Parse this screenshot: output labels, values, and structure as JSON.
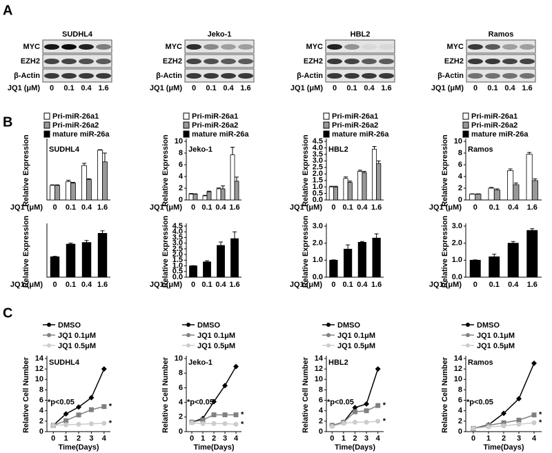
{
  "panel_labels": [
    "A",
    "B",
    "C"
  ],
  "blot_xlabel": "JQ1 (μM)",
  "blot_categories": [
    "0",
    "0.1",
    "0.4",
    "1.6"
  ],
  "blots": [
    {
      "title": "SUDHL4",
      "rows": [
        {
          "label": "MYC",
          "bands": [
            0.9,
            0.95,
            0.85,
            0.45
          ]
        },
        {
          "label": "EZH2",
          "bands": [
            0.7,
            0.7,
            0.65,
            0.6
          ]
        },
        {
          "label": "β-Actin",
          "bands": [
            0.75,
            0.75,
            0.75,
            0.75
          ]
        }
      ]
    },
    {
      "title": "Jeko-1",
      "rows": [
        {
          "label": "MYC",
          "bands": [
            0.8,
            0.4,
            0.3,
            0.3
          ]
        },
        {
          "label": "EZH2",
          "bands": [
            0.7,
            0.65,
            0.6,
            0.6
          ]
        },
        {
          "label": "β-Actin",
          "bands": [
            0.75,
            0.75,
            0.75,
            0.75
          ]
        }
      ]
    },
    {
      "title": "HBL2",
      "rows": [
        {
          "label": "MYC",
          "bands": [
            0.85,
            0.35,
            0.05,
            0.05
          ]
        },
        {
          "label": "EZH2",
          "bands": [
            0.75,
            0.7,
            0.6,
            0.6
          ]
        },
        {
          "label": "β-Actin",
          "bands": [
            0.75,
            0.75,
            0.75,
            0.75
          ]
        }
      ]
    },
    {
      "title": "Ramos",
      "rows": [
        {
          "label": "MYC",
          "bands": [
            0.75,
            0.6,
            0.3,
            0.3
          ]
        },
        {
          "label": "EZH2",
          "bands": [
            0.75,
            0.75,
            0.7,
            0.7
          ]
        },
        {
          "label": "β-Actin",
          "bands": [
            0.5,
            0.5,
            0.5,
            0.5
          ]
        }
      ]
    }
  ],
  "chart_data": [
    {
      "type": "bar",
      "title": "SUDHL4",
      "ylabel": "Relative Expression",
      "xlabel": "JQ1 (μM)",
      "categories": [
        "0",
        "0.1",
        "0.4",
        "1.6"
      ],
      "ylim": [
        0,
        4
      ],
      "series": [
        {
          "name": "Pri-miR-26a1",
          "color": "#ffffff",
          "values": [
            1.0,
            1.25,
            2.35,
            3.4
          ],
          "errors": [
            0.03,
            0.1,
            0.15,
            0.03
          ]
        },
        {
          "name": "Pri-miR-26a2",
          "color": "#999999",
          "values": [
            1.0,
            1.15,
            1.4,
            2.6
          ],
          "errors": [
            0.03,
            0.05,
            0.05,
            0.6
          ]
        }
      ]
    },
    {
      "type": "bar",
      "title": "Jeko-1",
      "ylabel": "Relative Expression",
      "xlabel": "JQ1 (μM)",
      "categories": [
        "0",
        "0.1",
        "0.4",
        "1.6"
      ],
      "ylim": [
        0,
        10
      ],
      "yticks": [
        0,
        2,
        4,
        6,
        8,
        10
      ],
      "series": [
        {
          "name": "Pri-miR-26a1",
          "color": "#ffffff",
          "values": [
            1.0,
            0.7,
            1.9,
            7.7
          ],
          "errors": [
            0.1,
            0.1,
            0.15,
            1.3
          ]
        },
        {
          "name": "Pri-miR-26a2",
          "color": "#999999",
          "values": [
            1.0,
            1.4,
            1.9,
            3.2
          ],
          "errors": [
            0.05,
            0.1,
            0.5,
            0.7
          ]
        }
      ]
    },
    {
      "type": "bar",
      "title": "HBL2",
      "ylabel": "Relative Expression",
      "xlabel": "JQ1 (μM)",
      "categories": [
        "0",
        "0.1",
        "0.4",
        "1.6"
      ],
      "ylim": [
        0,
        4.5
      ],
      "yticks": [
        {
          "value": 0,
          "label": "0.0"
        },
        0.5,
        {
          "value": 1,
          "label": "1.0"
        },
        1.5,
        {
          "value": 2,
          "label": "2.0"
        },
        2.5,
        {
          "value": 3,
          "label": "3.0"
        },
        3.5,
        {
          "value": 4,
          "label": "4.0"
        },
        4.5
      ],
      "series": [
        {
          "name": "Pri-miR-26a1",
          "color": "#ffffff",
          "values": [
            1.0,
            1.65,
            2.2,
            3.9
          ],
          "errors": [
            0.05,
            0.12,
            0.08,
            0.2
          ]
        },
        {
          "name": "Pri-miR-26a2",
          "color": "#999999",
          "values": [
            1.0,
            1.35,
            2.1,
            2.8
          ],
          "errors": [
            0.05,
            0.1,
            0.1,
            0.2
          ]
        }
      ]
    },
    {
      "type": "bar",
      "title": "Ramos",
      "ylabel": "Relative Expression",
      "xlabel": "JQ1 (μM)",
      "categories": [
        "0",
        "0.1",
        "0.4",
        "1.6"
      ],
      "ylim": [
        0,
        10
      ],
      "yticks": [
        0,
        2,
        4,
        6,
        8,
        10
      ],
      "series": [
        {
          "name": "Pri-miR-26a1",
          "color": "#ffffff",
          "values": [
            1.0,
            2.0,
            5.0,
            7.8
          ],
          "errors": [
            0.05,
            0.15,
            0.3,
            0.3
          ]
        },
        {
          "name": "Pri-miR-26a2",
          "color": "#999999",
          "values": [
            1.0,
            1.7,
            2.6,
            3.3
          ],
          "errors": [
            0.05,
            0.2,
            0.3,
            0.3
          ]
        }
      ]
    },
    {
      "type": "bar",
      "ylabel": "Relative Expression",
      "xlabel": "JQ1 (μM)",
      "categories": [
        "0",
        "0.1",
        "0.4",
        "1.6"
      ],
      "ylim": [
        0,
        2.5
      ],
      "series": [
        {
          "name": "mature miR-26a",
          "color": "#000000",
          "values": [
            1.0,
            1.62,
            1.7,
            2.15
          ],
          "errors": [
            0.02,
            0.05,
            0.1,
            0.12
          ]
        }
      ]
    },
    {
      "type": "bar",
      "ylabel": "Relative Expression",
      "xlabel": "JQ1 (μM)",
      "categories": [
        "0",
        "0.1",
        "0.4",
        "1.6"
      ],
      "ylim": [
        0,
        4.5
      ],
      "yticks": [
        {
          "value": 0,
          "label": "0.0"
        },
        0.5,
        {
          "value": 1,
          "label": "1.0"
        },
        1.5,
        {
          "value": 2,
          "label": "2.0"
        },
        2.5,
        {
          "value": 3,
          "label": "3.0"
        },
        3.5,
        {
          "value": 4,
          "label": "4.0"
        },
        4.5
      ],
      "series": [
        {
          "name": "mature miR-26a",
          "color": "#000000",
          "values": [
            1.0,
            1.35,
            2.8,
            3.4
          ],
          "errors": [
            0.02,
            0.1,
            0.3,
            0.6
          ]
        }
      ]
    },
    {
      "type": "bar",
      "ylabel": "Relative Expression",
      "xlabel": "JQ1 (μM)",
      "categories": [
        "0",
        "0.1",
        "0.4",
        "1.6"
      ],
      "ylim": [
        0,
        3
      ],
      "yticks": [
        {
          "value": 0,
          "label": "0.0"
        },
        {
          "value": 1,
          "label": "1.0"
        },
        {
          "value": 2,
          "label": "2.0"
        },
        {
          "value": 3,
          "label": "3.0"
        }
      ],
      "series": [
        {
          "name": "mature miR-26a",
          "color": "#000000",
          "values": [
            1.0,
            1.65,
            2.05,
            2.3
          ],
          "errors": [
            0.02,
            0.25,
            0.05,
            0.25
          ]
        }
      ]
    },
    {
      "type": "bar",
      "ylabel": "Relative Expression",
      "xlabel": "JQ1 (μM)",
      "categories": [
        "0",
        "0.1",
        "0.4",
        "1.6"
      ],
      "ylim": [
        0,
        3
      ],
      "yticks": [
        {
          "value": 0,
          "label": "0.0"
        },
        {
          "value": 1,
          "label": "1.0"
        },
        {
          "value": 2,
          "label": "2.0"
        },
        {
          "value": 3,
          "label": "3.0"
        }
      ],
      "series": [
        {
          "name": "mature miR-26a",
          "color": "#000000",
          "values": [
            1.0,
            1.2,
            2.0,
            2.75
          ],
          "errors": [
            0.02,
            0.15,
            0.1,
            0.1
          ]
        }
      ]
    },
    {
      "type": "line",
      "title": "SUDHL4",
      "ylabel": "Relative Cell Number",
      "xlabel": "Time(Days)",
      "annotation": "*p<0.05",
      "x": [
        0,
        1,
        2,
        3,
        4
      ],
      "xlim": [
        -0.5,
        4.5
      ],
      "xticks": [
        0,
        1,
        2,
        3,
        4
      ],
      "ylim": [
        0,
        14
      ],
      "yticks": [
        0,
        2,
        4,
        6,
        8,
        10,
        12,
        14
      ],
      "series": [
        {
          "name": "DMSO",
          "color": "#000000",
          "marker": "diamond",
          "values": [
            1.2,
            3.4,
            4.7,
            6.5,
            12
          ]
        },
        {
          "name": "JQ1 0.1μM",
          "color": "#808080",
          "marker": "square",
          "values": [
            1.2,
            2.1,
            3.2,
            4.2,
            4.8
          ],
          "end_label": "*"
        },
        {
          "name": "JQ1 0.5μM",
          "color": "#cccccc",
          "marker": "circle",
          "values": [
            1.2,
            1.3,
            1.4,
            1.5,
            1.6
          ],
          "end_label": "*"
        }
      ]
    },
    {
      "type": "line",
      "title": "Jeko-1",
      "ylabel": "Relative Cell Number",
      "xlabel": "Time(Days)",
      "annotation": "*p<0.05",
      "x": [
        0,
        1,
        2,
        3,
        4
      ],
      "xlim": [
        -0.5,
        4.5
      ],
      "xticks": [
        0,
        1,
        2,
        3,
        4
      ],
      "ylim": [
        0,
        10
      ],
      "yticks": [
        0,
        2,
        4,
        6,
        8,
        10
      ],
      "series": [
        {
          "name": "DMSO",
          "color": "#000000",
          "marker": "diamond",
          "values": [
            1.3,
            1.8,
            4.1,
            6.3,
            8.9
          ]
        },
        {
          "name": "JQ1 0.1μM",
          "color": "#808080",
          "marker": "square",
          "values": [
            1.3,
            1.6,
            2.3,
            2.3,
            2.3
          ],
          "end_label": "*"
        },
        {
          "name": "JQ1 0.5μM",
          "color": "#cccccc",
          "marker": "circle",
          "values": [
            1.2,
            1.1,
            1.1,
            1.1,
            1.0
          ],
          "end_label": "*"
        }
      ]
    },
    {
      "type": "line",
      "title": "HBL2",
      "ylabel": "Relative Cell Number",
      "xlabel": "Time(Days)",
      "annotation": "*p<0.05",
      "x": [
        0,
        1,
        2,
        3,
        4
      ],
      "xlim": [
        -0.5,
        4.5
      ],
      "xticks": [
        0,
        1,
        2,
        3,
        4
      ],
      "ylim": [
        0,
        14
      ],
      "yticks": [
        0,
        2,
        4,
        6,
        8,
        10,
        12,
        14
      ],
      "series": [
        {
          "name": "DMSO",
          "color": "#000000",
          "marker": "diamond",
          "values": [
            1.2,
            1.8,
            4.6,
            5.3,
            12
          ]
        },
        {
          "name": "JQ1 0.1μM",
          "color": "#808080",
          "marker": "square",
          "values": [
            1.2,
            1.8,
            3.8,
            4.0,
            5.0
          ],
          "end_label": "*"
        },
        {
          "name": "JQ1 0.5μM",
          "color": "#cccccc",
          "marker": "circle",
          "values": [
            1.0,
            1.6,
            1.8,
            1.8,
            2.0
          ],
          "end_label": "*"
        }
      ]
    },
    {
      "type": "line",
      "title": "Ramos",
      "ylabel": "Relative Cell Number",
      "xlabel": "Time(Days)",
      "annotation": "*p<0.05",
      "x": [
        0,
        1,
        2,
        3,
        4
      ],
      "xlim": [
        -0.5,
        4.5
      ],
      "xticks": [
        0,
        1,
        2,
        3,
        4
      ],
      "ylim": [
        0,
        14
      ],
      "yticks": [
        0,
        2,
        4,
        6,
        8,
        10,
        12,
        14
      ],
      "series": [
        {
          "name": "DMSO",
          "color": "#000000",
          "marker": "diamond",
          "values": [
            0.6,
            1.3,
            3.5,
            6.3,
            13.1
          ]
        },
        {
          "name": "JQ1 0.1μM",
          "color": "#808080",
          "marker": "square",
          "values": [
            0.6,
            1.2,
            1.7,
            2.2,
            3.2
          ],
          "end_label": "*"
        },
        {
          "name": "JQ1 0.5μM",
          "color": "#cccccc",
          "marker": "circle",
          "values": [
            0.6,
            0.9,
            1.1,
            1.4,
            1.7
          ],
          "end_label": "*"
        }
      ]
    }
  ]
}
